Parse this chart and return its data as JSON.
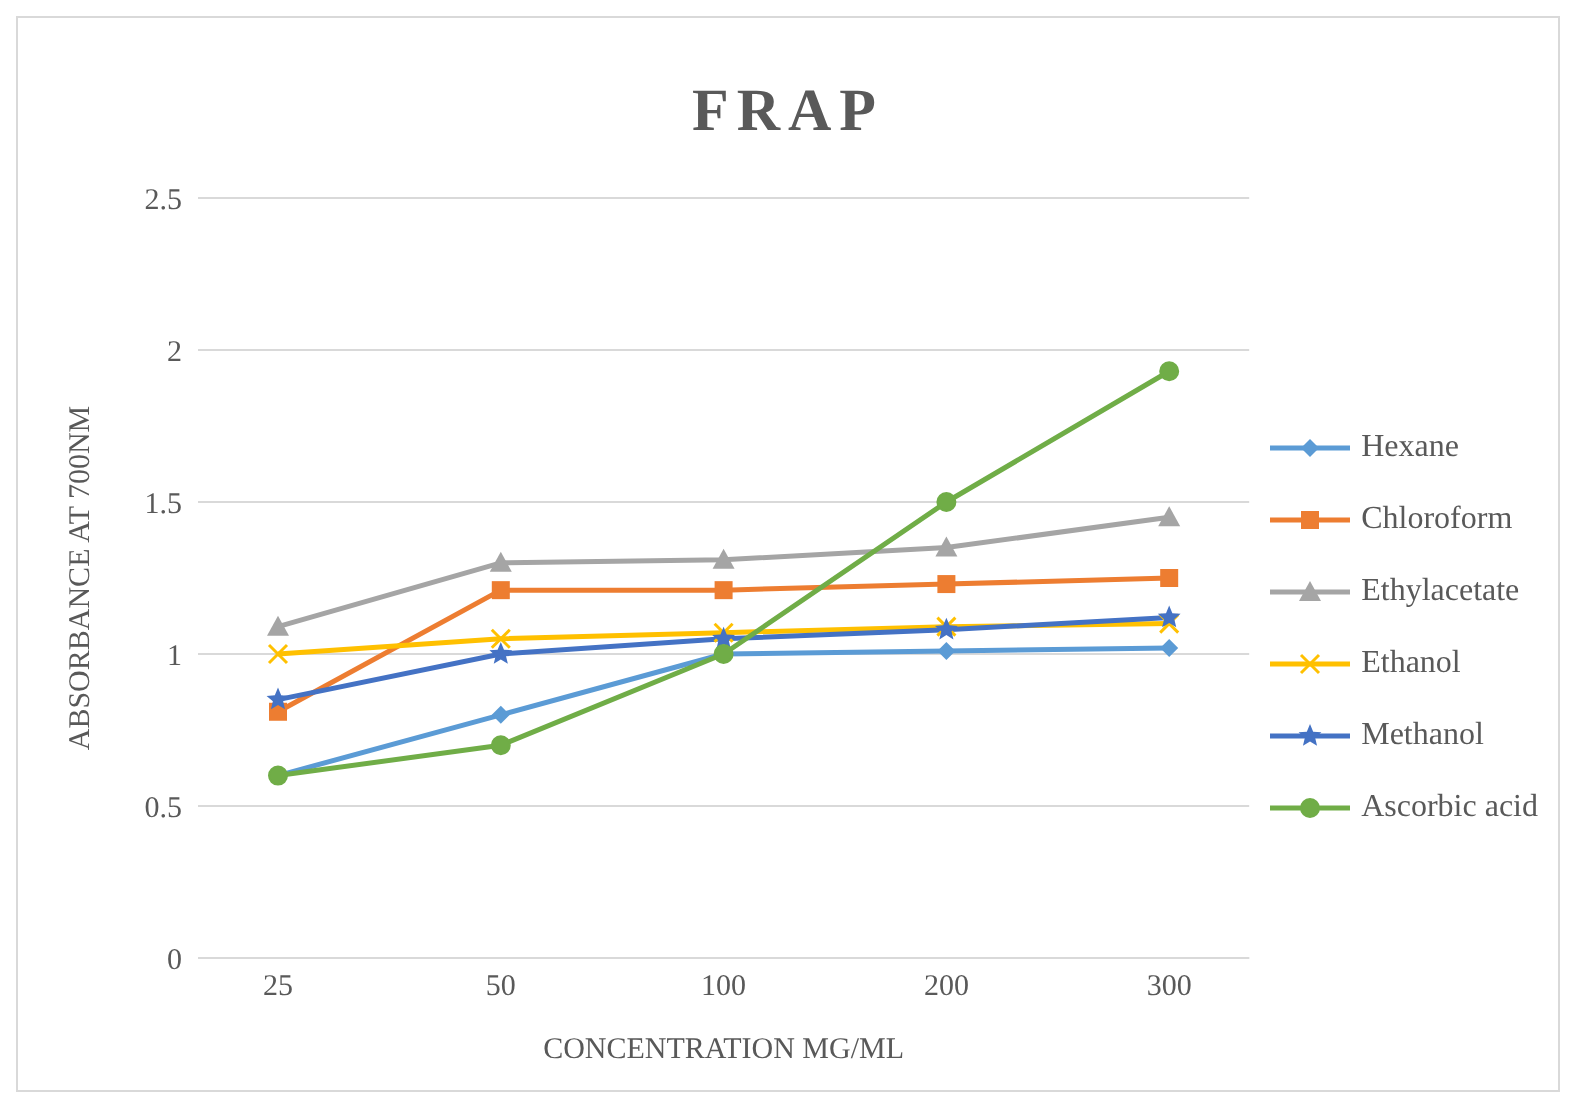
{
  "chart_data": {
    "type": "line",
    "title": "FRAP",
    "xlabel": "CONCENTRATION MG/ML",
    "ylabel": "ABSORBANCE AT 700NM",
    "categories": [
      "25",
      "50",
      "100",
      "200",
      "300"
    ],
    "ylim": [
      0,
      2.5
    ],
    "yticks": [
      0,
      0.5,
      1,
      1.5,
      2,
      2.5
    ],
    "grid": "y",
    "legend": "right",
    "series": [
      {
        "name": "Hexane",
        "color": "#5b9bd5",
        "marker": "diamond",
        "values": [
          0.6,
          0.8,
          1.0,
          1.01,
          1.02
        ]
      },
      {
        "name": "Chloroform",
        "color": "#ed7d31",
        "marker": "square",
        "values": [
          0.81,
          1.21,
          1.21,
          1.23,
          1.25
        ]
      },
      {
        "name": "Ethylacetate",
        "color": "#a5a5a5",
        "marker": "triangle",
        "values": [
          1.09,
          1.3,
          1.31,
          1.35,
          1.45
        ]
      },
      {
        "name": "Ethanol",
        "color": "#ffc000",
        "marker": "cross",
        "values": [
          1.0,
          1.05,
          1.07,
          1.09,
          1.1
        ]
      },
      {
        "name": "Methanol",
        "color": "#4472c4",
        "marker": "star",
        "values": [
          0.85,
          1.0,
          1.05,
          1.08,
          1.12
        ]
      },
      {
        "name": "Ascorbic acid",
        "color": "#70ad47",
        "marker": "circle",
        "values": [
          0.6,
          0.7,
          1.0,
          1.5,
          1.93
        ]
      }
    ]
  }
}
